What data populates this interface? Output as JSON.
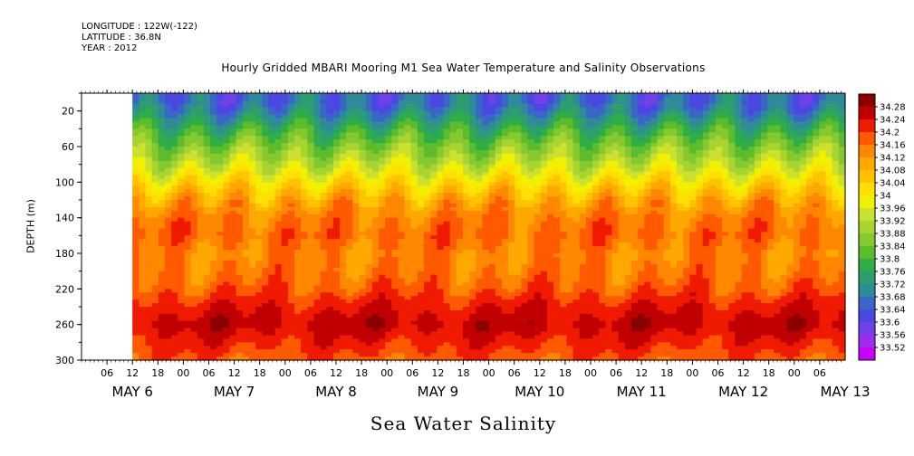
{
  "header": {
    "longitude": "LONGITUDE : 122W(-122)",
    "latitude": "LATITUDE : 36.8N",
    "year": "YEAR : 2012"
  },
  "chart_data": {
    "type": "heatmap",
    "title": "Hourly Gridded MBARI Mooring M1 Sea Water Temperature and Salinity Observations",
    "xlabel": "Sea Water Salinity",
    "ylabel": "DEPTH (m)",
    "x_range": [
      "2012-05-06T00:00",
      "2012-05-13T12:00"
    ],
    "y_range": [
      300,
      0
    ],
    "y_axis_inverted": true,
    "y_ticks": [
      20,
      60,
      100,
      140,
      180,
      220,
      260,
      300
    ],
    "x_hour_ticks": [
      "06",
      "12",
      "18",
      "00",
      "06",
      "12",
      "18",
      "00",
      "06",
      "12",
      "18",
      "00",
      "06",
      "12",
      "18",
      "00",
      "06",
      "12",
      "18",
      "00",
      "06",
      "12",
      "18",
      "00",
      "06",
      "12",
      "18",
      "00",
      "06",
      "12",
      "18",
      "00",
      "06"
    ],
    "x_date_labels": [
      "MAY  6",
      "MAY  7",
      "MAY  8",
      "MAY  9",
      "MAY 10",
      "MAY 11",
      "MAY 12",
      "MAY 13"
    ],
    "data_start": "2012-05-06T12:00",
    "colorbar": {
      "levels": [
        33.52,
        33.56,
        33.6,
        33.64,
        33.68,
        33.72,
        33.76,
        33.8,
        33.84,
        33.88,
        33.92,
        33.96,
        34,
        34.04,
        34.08,
        34.12,
        34.16,
        34.2,
        34.24,
        34.28
      ],
      "labels": [
        "34.28",
        "34.24",
        "34.2",
        "34.16",
        "34.12",
        "34.08",
        "34.04",
        "34",
        "33.96",
        "33.92",
        "33.88",
        "33.84",
        "33.8",
        "33.76",
        "33.72",
        "33.68",
        "33.64",
        "33.6",
        "33.56",
        "33.52"
      ],
      "colors": [
        "#c800ff",
        "#9c2cf0",
        "#7040e8",
        "#4a48e0",
        "#3a66c8",
        "#2f8a9a",
        "#2e9e70",
        "#2fae48",
        "#5cbc2c",
        "#86c830",
        "#a8d430",
        "#cce030",
        "#f0f000",
        "#ffe000",
        "#ffc400",
        "#ffa800",
        "#ff8800",
        "#ff5a00",
        "#f01a00",
        "#c00000",
        "#8a0000"
      ]
    },
    "depth_profile": [
      {
        "depth": 10,
        "salinity": 33.66
      },
      {
        "depth": 20,
        "salinity": 33.69
      },
      {
        "depth": 40,
        "salinity": 33.78
      },
      {
        "depth": 60,
        "salinity": 33.86
      },
      {
        "depth": 80,
        "salinity": 33.93
      },
      {
        "depth": 100,
        "salinity": 34.02
      },
      {
        "depth": 120,
        "salinity": 34.1
      },
      {
        "depth": 140,
        "salinity": 34.15
      },
      {
        "depth": 160,
        "salinity": 34.17
      },
      {
        "depth": 180,
        "salinity": 34.14
      },
      {
        "depth": 200,
        "salinity": 34.15
      },
      {
        "depth": 220,
        "salinity": 34.18
      },
      {
        "depth": 240,
        "salinity": 34.23
      },
      {
        "depth": 260,
        "salinity": 34.26
      },
      {
        "depth": 280,
        "salinity": 34.22
      },
      {
        "depth": 300,
        "salinity": 34.18
      }
    ],
    "grid": false
  }
}
